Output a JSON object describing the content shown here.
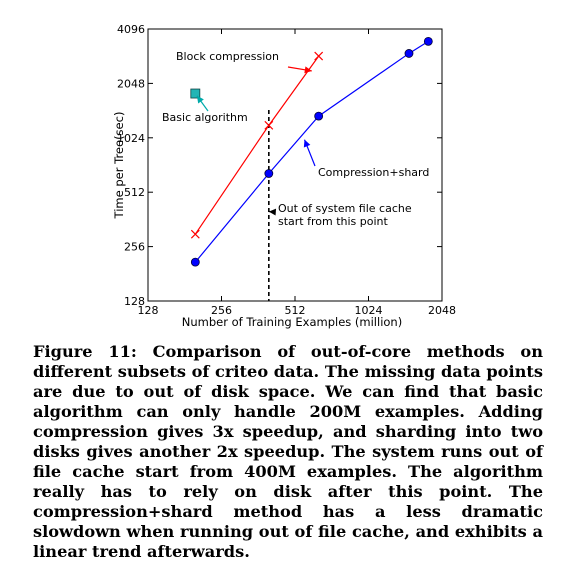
{
  "chart_data": {
    "type": "line",
    "xlabel": "Number of Training Examples (million)",
    "ylabel": "Time per Tree(sec)",
    "xscale": "log2",
    "yscale": "log2",
    "xlim": [
      128,
      2048
    ],
    "ylim": [
      128,
      4096
    ],
    "xticks": [
      128,
      256,
      512,
      1024,
      2048
    ],
    "yticks": [
      128,
      256,
      512,
      1024,
      2048,
      4096
    ],
    "grid": false,
    "legend": "none",
    "series": [
      {
        "name": "Block compression",
        "color": "#ff0000",
        "marker": "x",
        "points": [
          [
            200,
            300
          ],
          [
            400,
            1200
          ],
          [
            640,
            2900
          ]
        ]
      },
      {
        "name": "Compression+shard",
        "color": "#0000ff",
        "marker": "circle",
        "points": [
          [
            200,
            210
          ],
          [
            400,
            650
          ],
          [
            640,
            1350
          ],
          [
            1500,
            3000
          ],
          [
            1800,
            3500
          ]
        ]
      },
      {
        "name": "Basic algorithm",
        "color": "#00aaaa",
        "marker": "square",
        "points": [
          [
            200,
            1800
          ]
        ]
      }
    ],
    "vline": {
      "x": 400
    },
    "annotations": [
      {
        "text": "Block compression",
        "target": [
          600,
          2400
        ],
        "color": "#ff0000"
      },
      {
        "text": "Basic algorithm",
        "target": [
          203,
          1750
        ],
        "color": "#00aaaa"
      },
      {
        "text": "Compression+shard",
        "target": [
          560,
          1000
        ],
        "color": "#0000ff"
      },
      {
        "text": "Out of system file cache\nstart from this point",
        "target": [
          400,
          400
        ],
        "color": "#000000"
      }
    ]
  },
  "caption": {
    "label": "Figure 11:",
    "text": "Comparison of out-of-core methods on different subsets of criteo data. The missing data points are due to out of disk space. We can find that basic algorithm can only handle 200M examples. Adding compression gives 3x speedup, and sharding into two disks gives another 2x speedup. The system runs out of file cache start from 400M examples. The algorithm really has to rely on disk after this point. The compression+shard method has a less dramatic slowdown when running out of file cache, and exhibits a linear trend afterwards."
  }
}
